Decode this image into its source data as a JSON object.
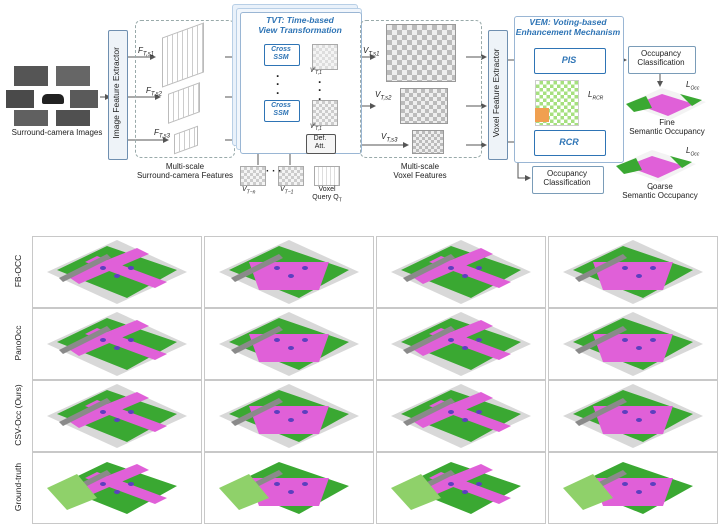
{
  "diagram": {
    "input_label": "Surround-camera Images",
    "image_feature_extractor": "Image Feature Extractor",
    "feature_labels": [
      "F",
      "F",
      "F"
    ],
    "feature_subs": [
      "T,s1",
      "T,s2",
      "T,s3"
    ],
    "multiscale_surround": "Multi-scale\nSurround-camera Features",
    "tvt_title": "TVT: Time-based\nView Transformation",
    "cross_ssm": "Cross\nSSM",
    "def_att": "Def.\nAtt.",
    "voxel_prev_labels": [
      "V",
      "V",
      "V"
    ],
    "voxel_prev_subs": [
      "T,s1",
      "T,s2",
      "T,s3"
    ],
    "v_t_minus_n": "V",
    "v_t_minus_n_sub": "T−n",
    "v_t_minus_1": "V",
    "v_t_minus_1_sub": "T−1",
    "voxel_query": "Voxel\nQuery Q",
    "voxel_query_sub": "T",
    "multiscale_voxel": "Multi-scale\nVoxel Features",
    "voxel_feature_extractor": "Voxel Feature Extractor",
    "vem_title": "VEM: Voting-based\nEnhancement Mechanism",
    "pis": "PIS",
    "rcr": "RCR",
    "l_rcr": "L",
    "l_rcr_sub": "RCR",
    "occ_class_top": "Occupancy\nClassification",
    "occ_class_bottom": "Occupancy\nClassification",
    "l_occ": "L",
    "l_occ_sub": "Occ",
    "fine": "Fine\nSemantic Occupancy",
    "coarse": "Coarse\nSemantic Occupancy"
  },
  "grid": {
    "rows": [
      "FB-OCC",
      "PanoOcc",
      "CSV-Occ (Ours)",
      "Ground-truth"
    ]
  },
  "colors": {
    "drivable": "#e060d8",
    "vegetation": "#3aa832",
    "terrain": "#8fd16a",
    "sidewalk": "#8a8a8a",
    "building": "#d8d8d8",
    "car": "#5c3fbf",
    "blue": "#2e74b5"
  }
}
